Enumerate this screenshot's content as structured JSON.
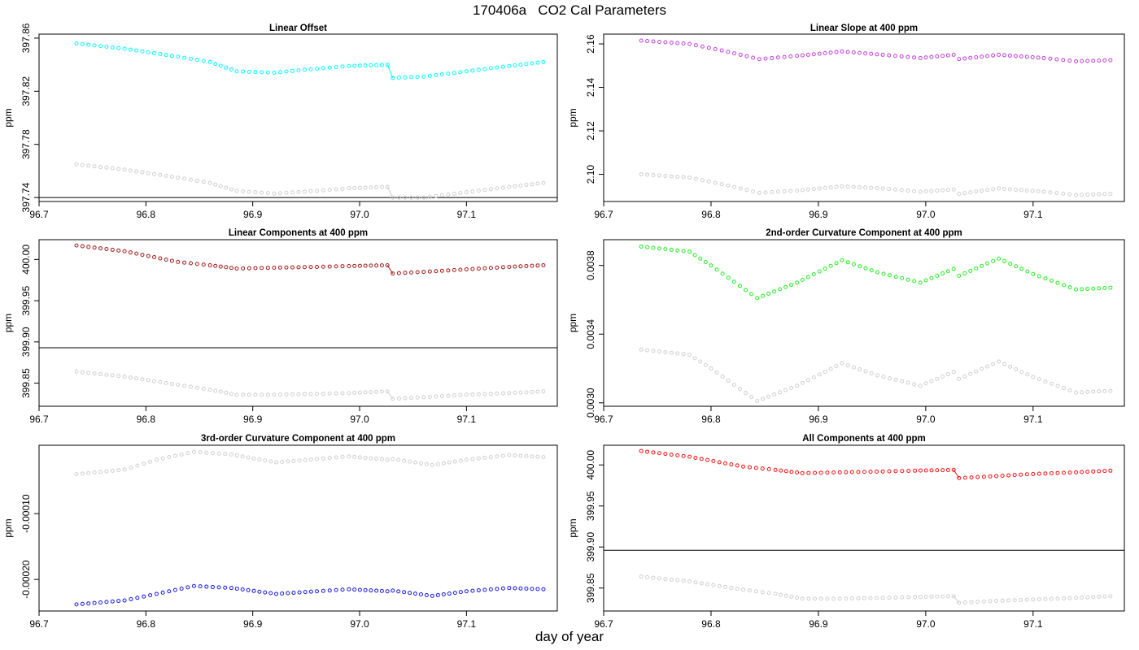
{
  "title": "170406a   CO2 Cal Parameters",
  "xlabel": "day of year",
  "colors": {
    "gray": "#cfcfcf",
    "frame": "#000000"
  },
  "chart_data": [
    {
      "type": "scatter",
      "title": "Linear Offset",
      "ylabel": "ppm",
      "xlim": [
        96.7,
        97.185
      ],
      "ylim": [
        397.737,
        397.863
      ],
      "xticks": [
        "96.7",
        "96.8",
        "96.9",
        "97.0",
        "97.1"
      ],
      "yticks": [
        "397.74",
        "397.78",
        "397.82",
        "397.86"
      ],
      "hline": 397.74,
      "series": [
        {
          "color": "#00ffff",
          "break_after": 97.026,
          "connect_at_break": true,
          "points": [
            [
              96.735,
              397.856
            ],
            [
              96.78,
              397.852
            ],
            [
              96.83,
              397.846
            ],
            [
              96.86,
              397.842
            ],
            [
              96.885,
              397.835
            ],
            [
              96.92,
              397.834
            ],
            [
              96.96,
              397.837
            ],
            [
              96.99,
              397.839
            ],
            [
              97.026,
              397.84
            ],
            [
              97.031,
              397.83
            ],
            [
              97.06,
              397.831
            ],
            [
              97.1,
              397.835
            ],
            [
              97.14,
              397.839
            ],
            [
              97.172,
              397.842
            ]
          ]
        },
        {
          "color": "#cfcfcf",
          "break_after": 97.026,
          "connect_at_break": true,
          "points": [
            [
              96.735,
              397.765
            ],
            [
              96.78,
              397.761
            ],
            [
              96.83,
              397.755
            ],
            [
              96.86,
              397.751
            ],
            [
              96.885,
              397.745
            ],
            [
              96.92,
              397.743
            ],
            [
              96.96,
              397.745
            ],
            [
              96.99,
              397.747
            ],
            [
              97.026,
              397.748
            ],
            [
              97.031,
              397.74
            ],
            [
              97.06,
              397.74
            ],
            [
              97.1,
              397.744
            ],
            [
              97.14,
              397.748
            ],
            [
              97.172,
              397.751
            ]
          ]
        }
      ]
    },
    {
      "type": "scatter",
      "title": "Linear Slope at 400 ppm",
      "ylabel": "ppm",
      "xlim": [
        96.7,
        97.185
      ],
      "ylim": [
        2.0875,
        2.1645
      ],
      "xticks": [
        "96.7",
        "96.8",
        "96.9",
        "97.0",
        "97.1"
      ],
      "yticks": [
        "2.10",
        "2.12",
        "2.14",
        "2.16"
      ],
      "series": [
        {
          "color": "#c040d8",
          "break_after": 97.026,
          "points": [
            [
              96.735,
              2.1615
            ],
            [
              96.78,
              2.16
            ],
            [
              96.81,
              2.157
            ],
            [
              96.845,
              2.153
            ],
            [
              96.88,
              2.1545
            ],
            [
              96.922,
              2.1565
            ],
            [
              96.96,
              2.155
            ],
            [
              96.995,
              2.1535
            ],
            [
              97.026,
              2.155
            ],
            [
              97.031,
              2.153
            ],
            [
              97.068,
              2.155
            ],
            [
              97.11,
              2.1535
            ],
            [
              97.14,
              2.152
            ],
            [
              97.172,
              2.1525
            ]
          ]
        },
        {
          "color": "#cfcfcf",
          "break_after": 97.026,
          "points": [
            [
              96.735,
              2.1
            ],
            [
              96.78,
              2.0985
            ],
            [
              96.81,
              2.0955
            ],
            [
              96.845,
              2.0915
            ],
            [
              96.88,
              2.0925
            ],
            [
              96.922,
              2.0945
            ],
            [
              96.96,
              2.0935
            ],
            [
              96.995,
              2.092
            ],
            [
              97.026,
              2.093
            ],
            [
              97.031,
              2.091
            ],
            [
              97.068,
              2.0935
            ],
            [
              97.11,
              2.092
            ],
            [
              97.14,
              2.0905
            ],
            [
              97.172,
              2.091
            ]
          ]
        }
      ]
    },
    {
      "type": "scatter",
      "title": "Linear Components at 400 ppm",
      "ylabel": "ppm",
      "xlim": [
        96.7,
        97.185
      ],
      "ylim": [
        399.822,
        400.024
      ],
      "xticks": [
        "96.7",
        "96.8",
        "96.9",
        "97.0",
        "97.1"
      ],
      "yticks": [
        "399.85",
        "399.90",
        "399.95",
        "400.00"
      ],
      "hline": 399.893,
      "series": [
        {
          "color": "#a01818",
          "break_after": 97.026,
          "connect_at_break": true,
          "points": [
            [
              96.735,
              400.017
            ],
            [
              96.78,
              400.01
            ],
            [
              96.83,
              399.997
            ],
            [
              96.86,
              399.993
            ],
            [
              96.885,
              399.989
            ],
            [
              96.92,
              399.99
            ],
            [
              96.96,
              399.991
            ],
            [
              96.99,
              399.992
            ],
            [
              97.026,
              399.993
            ],
            [
              97.031,
              399.983
            ],
            [
              97.06,
              399.985
            ],
            [
              97.1,
              399.988
            ],
            [
              97.14,
              399.991
            ],
            [
              97.172,
              399.993
            ]
          ]
        },
        {
          "color": "#cfcfcf",
          "break_after": 97.026,
          "connect_at_break": true,
          "points": [
            [
              96.735,
              399.864
            ],
            [
              96.78,
              399.858
            ],
            [
              96.83,
              399.848
            ],
            [
              96.86,
              399.842
            ],
            [
              96.885,
              399.836
            ],
            [
              96.92,
              399.836
            ],
            [
              96.96,
              399.837
            ],
            [
              96.99,
              399.838
            ],
            [
              97.026,
              399.84
            ],
            [
              97.031,
              399.831
            ],
            [
              97.06,
              399.833
            ],
            [
              97.1,
              399.836
            ],
            [
              97.14,
              399.838
            ],
            [
              97.172,
              399.84
            ]
          ]
        }
      ]
    },
    {
      "type": "scatter",
      "title": "2nd-order Curvature Component at 400 ppm",
      "ylabel": "ppm",
      "xlim": [
        96.7,
        97.185
      ],
      "ylim": [
        0.00298,
        0.00395
      ],
      "xticks": [
        "96.7",
        "96.8",
        "96.9",
        "97.0",
        "97.1"
      ],
      "yticks": [
        "0.0030",
        "0.0034",
        "0.0038"
      ],
      "series": [
        {
          "color": "#22ee22",
          "break_after": 97.026,
          "points": [
            [
              96.735,
              0.00391
            ],
            [
              96.78,
              0.00388
            ],
            [
              96.8,
              0.0038
            ],
            [
              96.843,
              0.00361
            ],
            [
              96.88,
              0.0037
            ],
            [
              96.922,
              0.00383
            ],
            [
              96.955,
              0.00376
            ],
            [
              96.995,
              0.0037
            ],
            [
              97.026,
              0.00378
            ],
            [
              97.031,
              0.00374
            ],
            [
              97.068,
              0.00384
            ],
            [
              97.1,
              0.00375
            ],
            [
              97.14,
              0.00366
            ],
            [
              97.172,
              0.00367
            ]
          ]
        },
        {
          "color": "#cfcfcf",
          "break_after": 97.026,
          "points": [
            [
              96.735,
              0.00331
            ],
            [
              96.78,
              0.00328
            ],
            [
              96.8,
              0.0032
            ],
            [
              96.843,
              0.00301
            ],
            [
              96.88,
              0.0031
            ],
            [
              96.922,
              0.00323
            ],
            [
              96.955,
              0.00316
            ],
            [
              96.995,
              0.0031
            ],
            [
              97.026,
              0.00318
            ],
            [
              97.031,
              0.00314
            ],
            [
              97.068,
              0.00324
            ],
            [
              97.1,
              0.00315
            ],
            [
              97.14,
              0.00306
            ],
            [
              97.172,
              0.00307
            ]
          ]
        }
      ]
    },
    {
      "type": "scatter",
      "title": "3rd-order Curvature Component at 400 ppm",
      "ylabel": "ppm",
      "xlim": [
        96.7,
        97.185
      ],
      "ylim": [
        -0.000248,
        4e-06
      ],
      "xticks": [
        "96.7",
        "96.8",
        "96.9",
        "97.0",
        "97.1"
      ],
      "yticks": [
        "-0.00010",
        "-0.00020"
      ],
      "series": [
        {
          "color": "#1818e0",
          "break_after": 97.026,
          "points": [
            [
              96.735,
              -0.000238
            ],
            [
              96.78,
              -0.000232
            ],
            [
              96.81,
              -0.000222
            ],
            [
              96.845,
              -0.00021
            ],
            [
              96.88,
              -0.000213
            ],
            [
              96.922,
              -0.000222
            ],
            [
              96.96,
              -0.000218
            ],
            [
              96.99,
              -0.000215
            ],
            [
              97.026,
              -0.000218
            ],
            [
              97.031,
              -0.000217
            ],
            [
              97.068,
              -0.000225
            ],
            [
              97.1,
              -0.000218
            ],
            [
              97.14,
              -0.000213
            ],
            [
              97.172,
              -0.000215
            ]
          ]
        },
        {
          "color": "#cfcfcf",
          "break_after": 97.026,
          "points": [
            [
              96.735,
              -4e-05
            ],
            [
              96.78,
              -3.3e-05
            ],
            [
              96.81,
              -1.8e-05
            ],
            [
              96.845,
              -6e-06
            ],
            [
              96.88,
              -1e-05
            ],
            [
              96.922,
              -2.2e-05
            ],
            [
              96.96,
              -1.7e-05
            ],
            [
              96.99,
              -1.3e-05
            ],
            [
              97.026,
              -1.8e-05
            ],
            [
              97.031,
              -1.7e-05
            ],
            [
              97.068,
              -2.6e-05
            ],
            [
              97.1,
              -1.8e-05
            ],
            [
              97.14,
              -1.1e-05
            ],
            [
              97.172,
              -1.4e-05
            ]
          ]
        }
      ]
    },
    {
      "type": "scatter",
      "title": "All Components at 400 ppm",
      "ylabel": "ppm",
      "xlim": [
        96.7,
        97.185
      ],
      "ylim": [
        399.822,
        400.024
      ],
      "xticks": [
        "96.7",
        "96.8",
        "96.9",
        "97.0",
        "97.1"
      ],
      "yticks": [
        "399.85",
        "399.90",
        "399.95",
        "400.00"
      ],
      "hline": 399.896,
      "series": [
        {
          "color": "#ee1111",
          "break_after": 97.026,
          "connect_at_break": true,
          "points": [
            [
              96.735,
              400.017
            ],
            [
              96.78,
              400.01
            ],
            [
              96.83,
              399.998
            ],
            [
              96.86,
              399.994
            ],
            [
              96.885,
              399.99
            ],
            [
              96.92,
              399.991
            ],
            [
              96.96,
              399.992
            ],
            [
              96.99,
              399.993
            ],
            [
              97.026,
              399.994
            ],
            [
              97.031,
              399.984
            ],
            [
              97.06,
              399.986
            ],
            [
              97.1,
              399.989
            ],
            [
              97.14,
              399.991
            ],
            [
              97.172,
              399.993
            ]
          ]
        },
        {
          "color": "#cfcfcf",
          "break_after": 97.026,
          "connect_at_break": true,
          "points": [
            [
              96.735,
              399.864
            ],
            [
              96.78,
              399.858
            ],
            [
              96.83,
              399.848
            ],
            [
              96.86,
              399.843
            ],
            [
              96.885,
              399.837
            ],
            [
              96.92,
              399.837
            ],
            [
              96.96,
              399.838
            ],
            [
              96.99,
              399.839
            ],
            [
              97.026,
              399.84
            ],
            [
              97.031,
              399.832
            ],
            [
              97.06,
              399.834
            ],
            [
              97.1,
              399.836
            ],
            [
              97.14,
              399.838
            ],
            [
              97.172,
              399.84
            ]
          ]
        }
      ]
    }
  ]
}
